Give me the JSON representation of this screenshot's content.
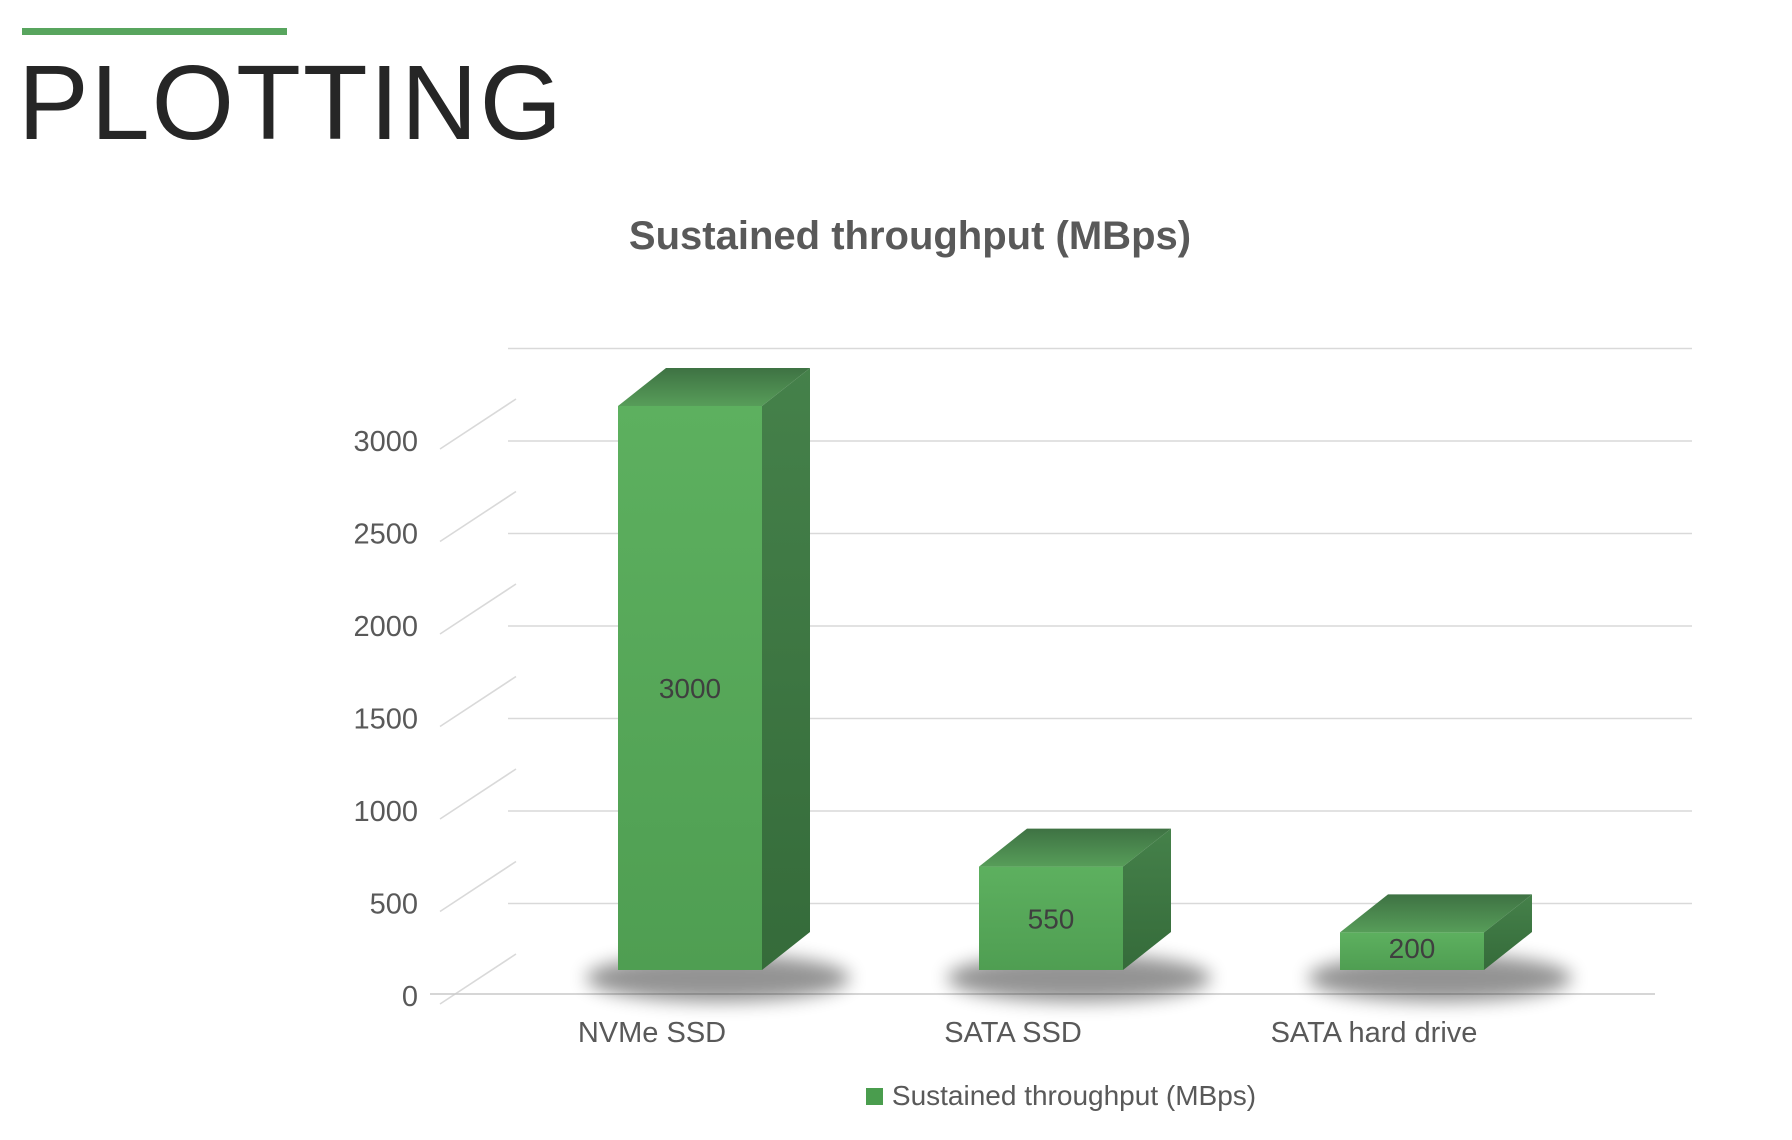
{
  "page": {
    "title": "PLOTTING"
  },
  "colors": {
    "accent_green": "#58a55e",
    "bar_front_top": "#5db05f",
    "bar_front_bottom": "#4f9e52",
    "bar_top_back": "#3e7243",
    "bar_top_front": "#579d59",
    "bar_side_top": "#45814a",
    "bar_side_bottom": "#356b3a",
    "gridline": "#d9d9d9",
    "axis_line": "#c9c9c9",
    "tick_text": "#595959",
    "data_label_text": "#3f3f3f",
    "legend_swatch": "#4a9d4e",
    "title_text": "#595959",
    "heading_text": "#262626"
  },
  "chart_data": {
    "type": "bar",
    "style": "3d-column",
    "title": "Sustained throughput (MBps)",
    "categories": [
      "NVMe SSD",
      "SATA SSD",
      "SATA hard drive"
    ],
    "series": [
      {
        "name": "Sustained throughput (MBps)",
        "values": [
          3000,
          550,
          200
        ]
      }
    ],
    "data_labels": [
      "3000",
      "550",
      "200"
    ],
    "xlabel": "",
    "ylabel": "",
    "ylim": [
      0,
      3500
    ],
    "ytick_step": 500,
    "ytick_max_labeled": 3000,
    "grid": true,
    "legend_position": "bottom"
  },
  "legend": {
    "label": "Sustained throughput (MBps)"
  }
}
